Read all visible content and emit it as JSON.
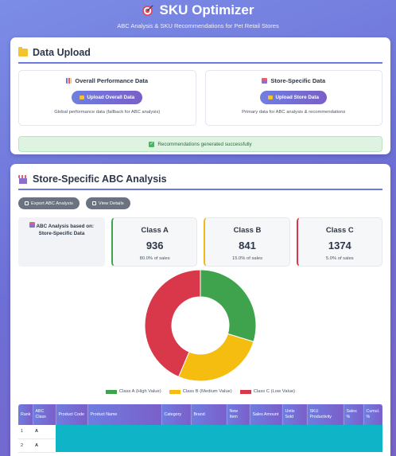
{
  "app": {
    "title": "SKU Optimizer",
    "subtitle": "ABC Analysis & SKU Recommendations for Pet Retail Stores"
  },
  "upload": {
    "title": "Data Upload",
    "overall": {
      "title": "Overall Performance Data",
      "button": "Upload Overall Data",
      "description": "Global performance data (fallback for ABC analysis)"
    },
    "store": {
      "title": "Store-Specific Data",
      "button": "Upload Store Data",
      "description": "Primary data for ABC analysis & recommendations"
    },
    "status": "Recommendations generated successfully"
  },
  "abc": {
    "title": "Store-Specific ABC Analysis",
    "actions": {
      "export": "Export ABC Analysis",
      "details": "View Details"
    },
    "basis": "ABC Analysis based on: Store-Specific Data",
    "classes": [
      {
        "name": "Class A",
        "count": "936",
        "pct": "80.0% of sales"
      },
      {
        "name": "Class B",
        "count": "841",
        "pct": "15.0% of sales"
      },
      {
        "name": "Class C",
        "count": "1374",
        "pct": "5.0% of sales"
      }
    ]
  },
  "chart_data": {
    "type": "pie",
    "variant": "doughnut",
    "categories": [
      "Class A (High Value)",
      "Class B (Medium Value)",
      "Class C (Low Value)"
    ],
    "values": [
      936,
      841,
      1374
    ],
    "colors": [
      "#3fa34d",
      "#f4bd0f",
      "#d9374a"
    ],
    "legend": "bottom"
  },
  "table": {
    "columns": [
      "Rank",
      "ABC Class",
      "Product Code",
      "Product Name",
      "Category",
      "Brand",
      "New Item",
      "Sales Amount",
      "Units Sold",
      "SKU Productivity",
      "Sales %",
      "Cumul. %"
    ],
    "rows": [
      {
        "rank": "1",
        "class": "A"
      },
      {
        "rank": "2",
        "class": "A"
      }
    ]
  }
}
